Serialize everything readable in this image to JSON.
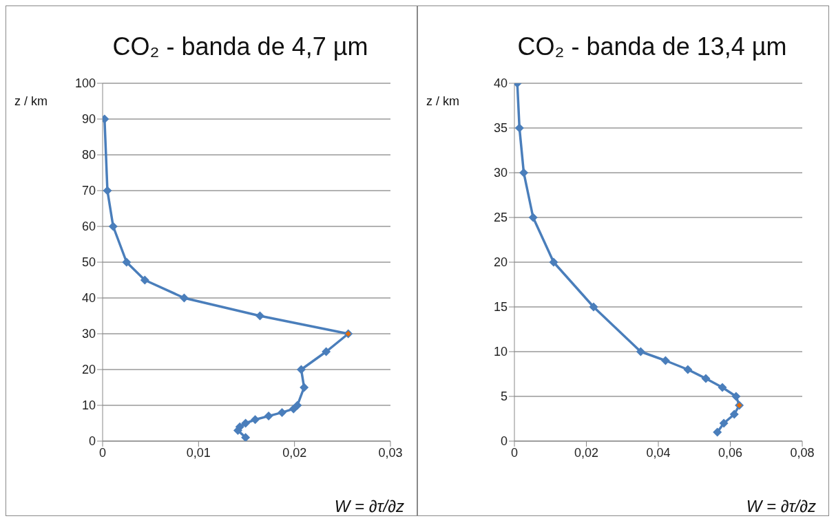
{
  "chart_data": [
    {
      "type": "line",
      "title": "CO₂ - banda de 4,7 µm",
      "xlabel": "W = ∂τ/∂z",
      "ylabel": "z / km",
      "marker": "diamond",
      "grid": "y",
      "xlim": [
        0,
        0.03
      ],
      "xticks": [
        0,
        {
          "value": 0.01,
          "label": "0,01"
        },
        {
          "value": 0.02,
          "label": "0,02"
        },
        {
          "value": 0.03,
          "label": "0,03"
        }
      ],
      "ylim": [
        0,
        100
      ],
      "yticks": [
        0,
        10,
        20,
        30,
        40,
        50,
        60,
        70,
        80,
        90,
        100
      ],
      "series": [
        {
          "color": "#4a7ebb",
          "x": [
            0.0002,
            0.0005,
            0.0011,
            0.0025,
            0.0044,
            0.0085,
            0.0164,
            0.0256,
            0.0233,
            0.0207,
            0.021,
            0.0203,
            0.0199,
            0.0187,
            0.0173,
            0.0159,
            0.0149,
            0.0143,
            0.0141,
            0.0149
          ],
          "values": [
            90,
            70,
            60,
            50,
            45,
            40,
            35,
            30,
            25,
            20,
            15,
            10,
            9,
            8,
            7,
            6,
            5,
            4,
            3,
            1
          ]
        },
        {
          "type": "scatter",
          "color": "#e46c0a",
          "x": [
            0.0256
          ],
          "values": [
            30
          ]
        }
      ]
    },
    {
      "type": "line",
      "title": "CO₂ - banda de 13,4 µm",
      "xlabel": "W = ∂τ/∂z",
      "ylabel": "z / km",
      "marker": "diamond",
      "grid": "y",
      "xlim": [
        0,
        0.08
      ],
      "xticks": [
        0,
        {
          "value": 0.02,
          "label": "0,02"
        },
        {
          "value": 0.04,
          "label": "0,04"
        },
        {
          "value": 0.06,
          "label": "0,06"
        },
        {
          "value": 0.08,
          "label": "0,08"
        }
      ],
      "ylim": [
        0,
        40
      ],
      "yticks": [
        0,
        5,
        10,
        15,
        20,
        25,
        30,
        35,
        40
      ],
      "series": [
        {
          "color": "#4a7ebb",
          "x": [
            0.0008,
            0.0014,
            0.0026,
            0.0052,
            0.0109,
            0.022,
            0.0351,
            0.042,
            0.0482,
            0.0532,
            0.0578,
            0.0616,
            0.0625,
            0.0611,
            0.0582,
            0.0564
          ],
          "values": [
            40,
            35,
            30,
            25,
            20,
            15,
            10,
            9,
            8,
            7,
            6,
            5,
            4,
            3,
            2,
            1
          ]
        },
        {
          "type": "scatter",
          "color": "#e46c0a",
          "x": [
            0.0625
          ],
          "values": [
            4
          ]
        }
      ]
    }
  ]
}
